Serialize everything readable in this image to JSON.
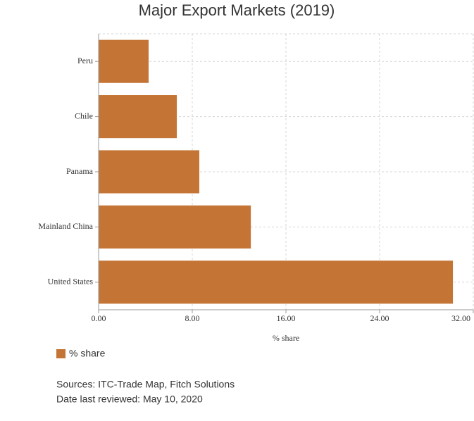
{
  "chart_data": {
    "type": "bar",
    "orientation": "horizontal",
    "title": "Major Export Markets (2019)",
    "categories": [
      "Peru",
      "Chile",
      "Panama",
      "Mainland China",
      "United States"
    ],
    "series": [
      {
        "name": "% share",
        "color": "#c47535",
        "values": [
          4.27,
          6.68,
          8.6,
          13.0,
          30.26
        ]
      }
    ],
    "x_label": "% share",
    "xlim": [
      0,
      32
    ],
    "xticks": [
      {
        "value": 0,
        "label": "0.00"
      },
      {
        "value": 8,
        "label": "8.00"
      },
      {
        "value": 16,
        "label": "16.00"
      },
      {
        "value": 24,
        "label": "24.00"
      },
      {
        "value": 32,
        "label": "32.00"
      }
    ],
    "grid": true,
    "sources": [
      "Sources: ITC-Trade Map, Fitch Solutions",
      "Date last reviewed: May 10, 2020"
    ]
  }
}
